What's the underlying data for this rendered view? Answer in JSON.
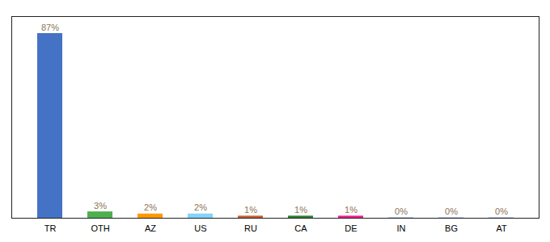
{
  "chart_data": {
    "type": "bar",
    "categories": [
      "TR",
      "OTH",
      "AZ",
      "US",
      "RU",
      "CA",
      "DE",
      "IN",
      "BG",
      "AT"
    ],
    "values": [
      87,
      3,
      2,
      2,
      1,
      1,
      1,
      0.15,
      0.15,
      0.15
    ],
    "value_labels": [
      "87%",
      "3%",
      "2%",
      "2%",
      "1%",
      "1%",
      "1%",
      "0%",
      "0%",
      "0%"
    ],
    "colors": [
      "#4472c4",
      "#4caf50",
      "#ff9800",
      "#81d4fa",
      "#bf6030",
      "#2e7d32",
      "#e91e8c",
      "#4472c4",
      "#4472c4",
      "#4472c4"
    ],
    "ylim": [
      0,
      95
    ],
    "data_labels": true,
    "tick_labels": "x"
  }
}
